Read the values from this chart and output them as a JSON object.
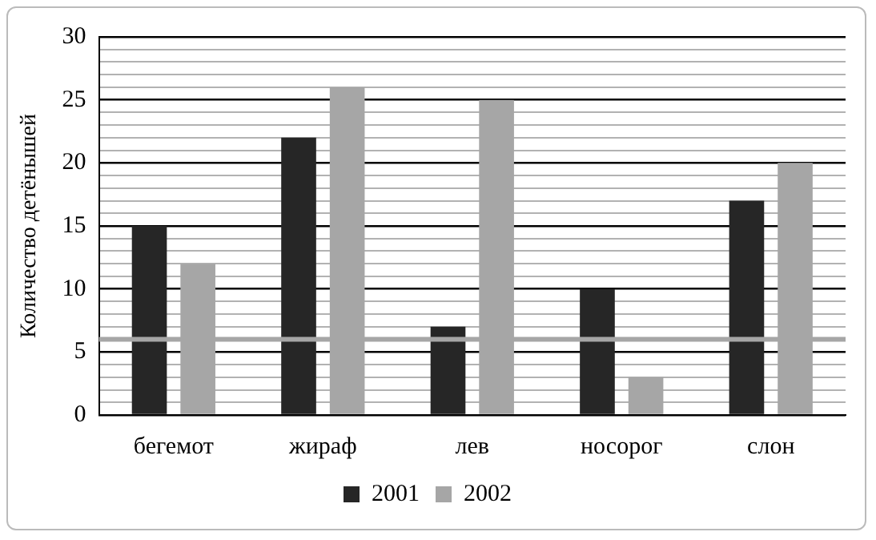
{
  "chart_data": {
    "type": "bar",
    "ylabel": "Количество детёнышей",
    "categories": [
      "бегемот",
      "жираф",
      "лев",
      "носорог",
      "слон"
    ],
    "series": [
      {
        "name": "2001",
        "color": "#262626",
        "values": [
          15,
          22,
          7,
          10,
          17
        ]
      },
      {
        "name": "2002",
        "color": "#a6a6a6",
        "values": [
          12,
          26,
          25,
          3,
          20
        ]
      }
    ],
    "ylim": [
      0,
      30
    ],
    "yticks": [
      0,
      {
        "value": 1,
        "label": null
      },
      {
        "value": 2,
        "label": null
      },
      {
        "value": 3,
        "label": null
      },
      {
        "value": 4,
        "label": null
      },
      5,
      {
        "value": 6,
        "label": null
      },
      {
        "value": 7,
        "label": null
      },
      {
        "value": 8,
        "label": null
      },
      {
        "value": 9,
        "label": null
      },
      10,
      {
        "value": 11,
        "label": null
      },
      {
        "value": 12,
        "label": null
      },
      {
        "value": 13,
        "label": null
      },
      {
        "value": 14,
        "label": null
      },
      15,
      {
        "value": 16,
        "label": null
      },
      {
        "value": 17,
        "label": null
      },
      {
        "value": 18,
        "label": null
      },
      {
        "value": 19,
        "label": null
      },
      20,
      {
        "value": 21,
        "label": null
      },
      {
        "value": 22,
        "label": null
      },
      {
        "value": 23,
        "label": null
      },
      {
        "value": 24,
        "label": null
      },
      25,
      {
        "value": 26,
        "label": null
      },
      {
        "value": 27,
        "label": null
      },
      {
        "value": 28,
        "label": null
      },
      {
        "value": 29,
        "label": null
      },
      30
    ],
    "ref_lines": [
      {
        "axis": "y",
        "value": 6,
        "label": null,
        "color": "#a6a6a6"
      }
    ],
    "grid": "y",
    "legend": "bottom"
  }
}
